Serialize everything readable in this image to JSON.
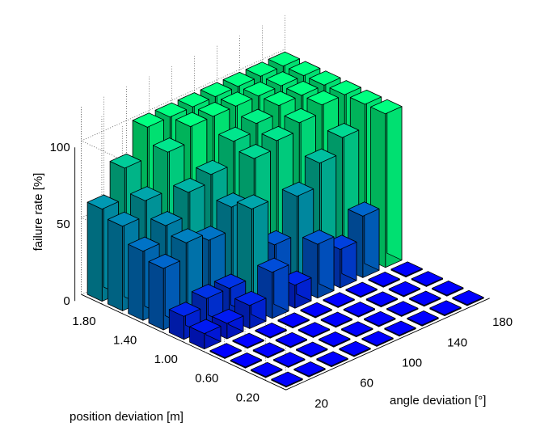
{
  "chart_data": {
    "type": "bar3d",
    "zlabel": "failure rate [%]",
    "xlabel": "angle deviation [°]",
    "ylabel": "position deviation [m]",
    "angle_ticks": [
      "20",
      "60",
      "100",
      "140",
      "180"
    ],
    "position_ticks": [
      "0.20",
      "0.60",
      "1.00",
      "1.40",
      "1.80"
    ],
    "z_ticks": [
      "0",
      "50",
      "100"
    ],
    "zlim": [
      0,
      100
    ],
    "angles": [
      20,
      40,
      60,
      80,
      100,
      120,
      140,
      160,
      180
    ],
    "positions": [
      0.2,
      0.4,
      0.6,
      0.8,
      1.0,
      1.2,
      1.4,
      1.6,
      1.8,
      2.0
    ],
    "values": [
      [
        0,
        0,
        0,
        0,
        0,
        0,
        0,
        0,
        0
      ],
      [
        0,
        0,
        0,
        0,
        0,
        0,
        0,
        0,
        0
      ],
      [
        0,
        0,
        0,
        0,
        0,
        0,
        0,
        0,
        0
      ],
      [
        0,
        0,
        0,
        0,
        0,
        0,
        0,
        0,
        0
      ],
      [
        10,
        10,
        15,
        30,
        15,
        35,
        25,
        40,
        100
      ],
      [
        15,
        20,
        20,
        65,
        35,
        60,
        75,
        85,
        100
      ],
      [
        40,
        50,
        45,
        60,
        85,
        90,
        95,
        100,
        100
      ],
      [
        45,
        55,
        70,
        75,
        90,
        95,
        100,
        100,
        100
      ],
      [
        55,
        65,
        90,
        100,
        100,
        100,
        100,
        100,
        100
      ],
      [
        60,
        80,
        100,
        100,
        100,
        100,
        100,
        100,
        100
      ]
    ],
    "colormap": [
      "#0000ff",
      "#00ff80"
    ],
    "grid": true
  }
}
